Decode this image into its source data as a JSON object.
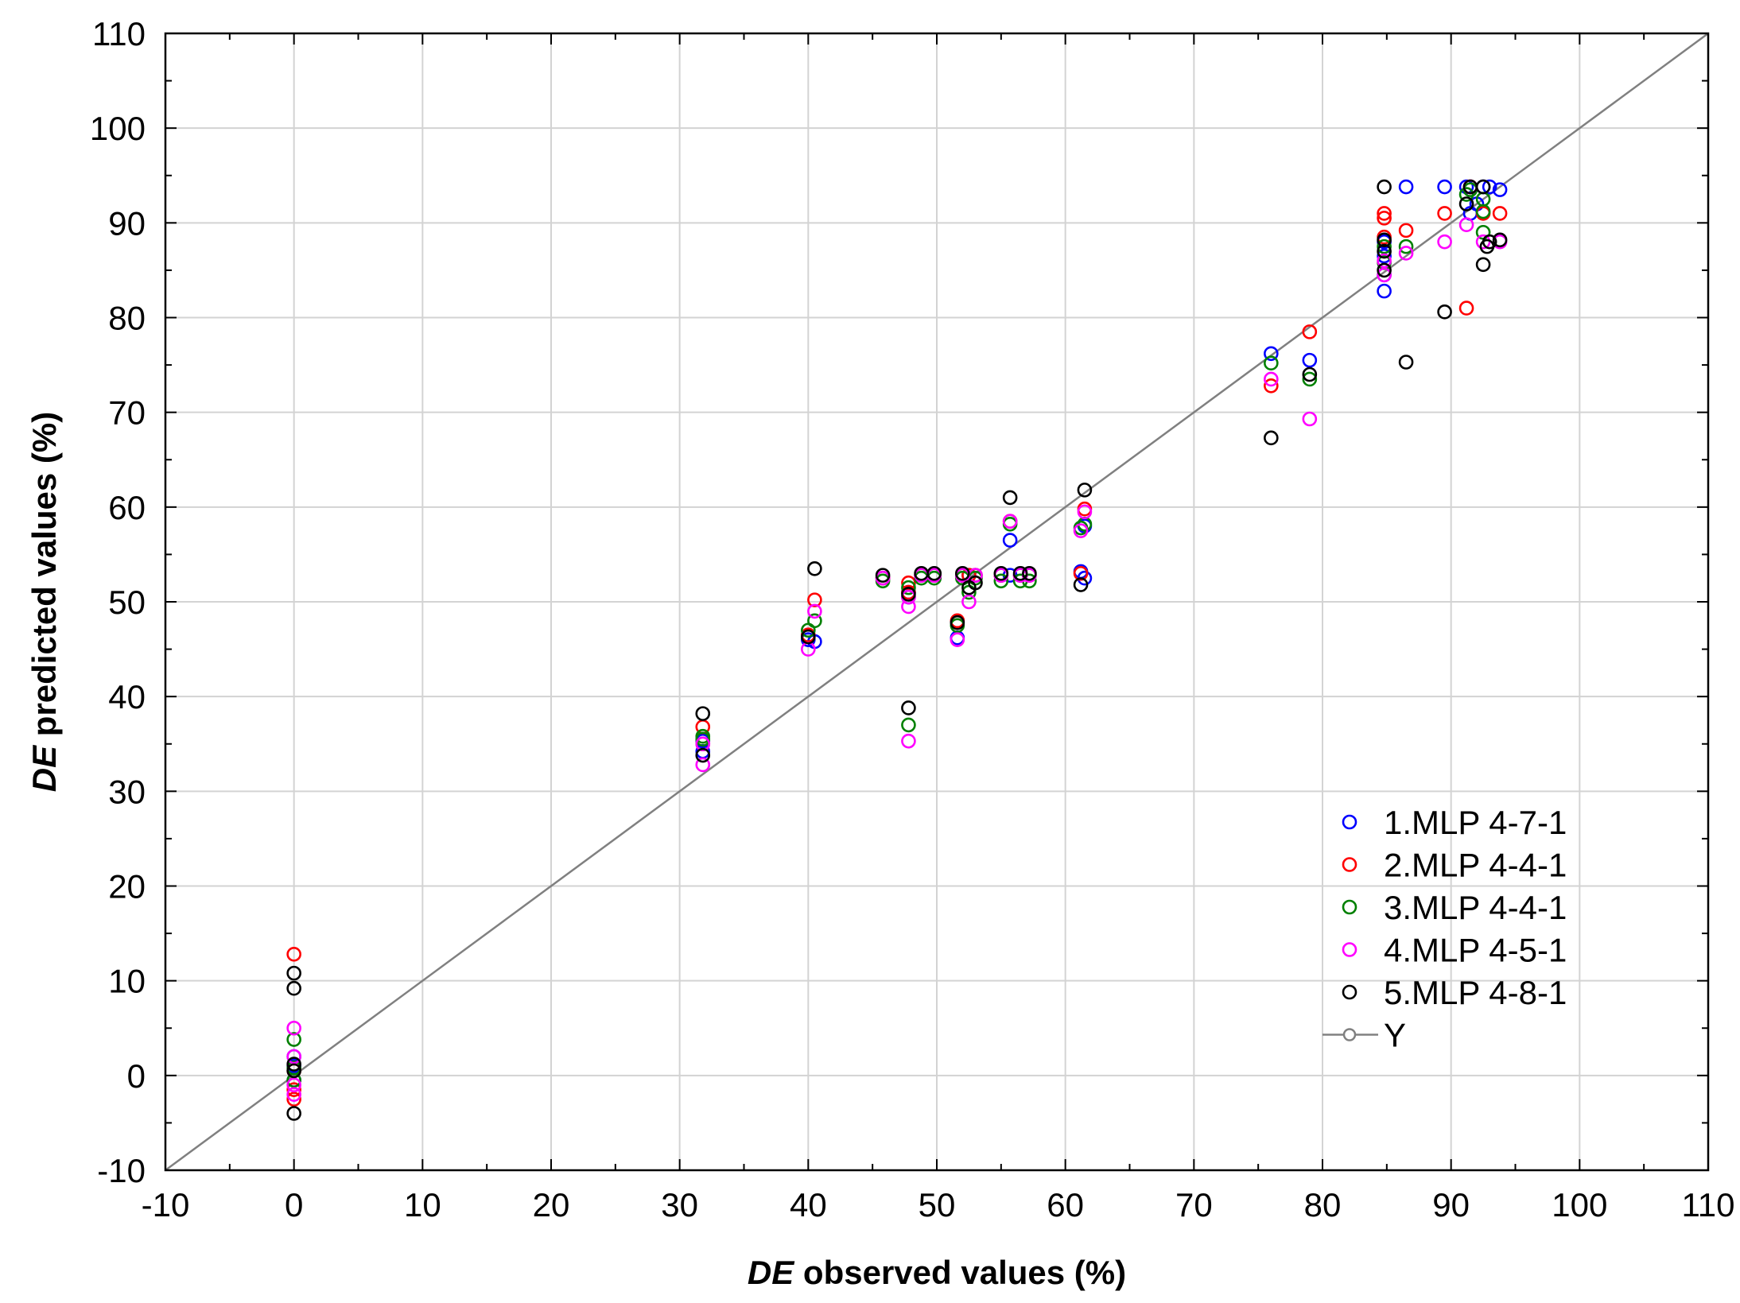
{
  "chart_data": {
    "type": "scatter",
    "xlabel_prefix": "DE",
    "xlabel_rest": " observed values (%)",
    "ylabel_prefix": "DE",
    "ylabel_rest": " predicted values (%)",
    "xlim": [
      -10,
      110
    ],
    "ylim": [
      -10,
      110
    ],
    "xticks": [
      -10,
      0,
      10,
      20,
      30,
      40,
      50,
      60,
      70,
      80,
      90,
      100,
      110
    ],
    "yticks": [
      -10,
      0,
      10,
      20,
      30,
      40,
      50,
      60,
      70,
      80,
      90,
      100,
      110
    ],
    "grid": true,
    "legend_position": "bottom-right",
    "series": [
      {
        "name": "1.MLP 4-7-1",
        "color": "#0000ff",
        "points": [
          [
            0,
            1
          ],
          [
            0,
            -0.5
          ],
          [
            0,
            2
          ],
          [
            31.8,
            35.3
          ],
          [
            31.8,
            34.2
          ],
          [
            40,
            46
          ],
          [
            40.5,
            45.8
          ],
          [
            45.8,
            52.5
          ],
          [
            47.8,
            51
          ],
          [
            47.8,
            50.5
          ],
          [
            48.8,
            52.8
          ],
          [
            49.8,
            52.8
          ],
          [
            51.6,
            46.2
          ],
          [
            52,
            52.8
          ],
          [
            52.5,
            52.8
          ],
          [
            53,
            52.8
          ],
          [
            55,
            52.8
          ],
          [
            55.7,
            56.5
          ],
          [
            55.7,
            52.8
          ],
          [
            56.5,
            52.8
          ],
          [
            57.2,
            52.8
          ],
          [
            61.2,
            53.2
          ],
          [
            61.5,
            52.5
          ],
          [
            61.5,
            58
          ],
          [
            76,
            76.2
          ],
          [
            79,
            75.5
          ],
          [
            84.8,
            82.8
          ],
          [
            84.8,
            84.5
          ],
          [
            84.8,
            86.5
          ],
          [
            84.8,
            88
          ],
          [
            86.5,
            93.8
          ],
          [
            89.5,
            93.8
          ],
          [
            91.2,
            93.8
          ],
          [
            91.5,
            91
          ],
          [
            92,
            92
          ],
          [
            92.5,
            93.8
          ],
          [
            93,
            93.8
          ],
          [
            93.8,
            93.5
          ]
        ]
      },
      {
        "name": "2.MLP 4-4-1",
        "color": "#ff0000",
        "points": [
          [
            0,
            12.8
          ],
          [
            0,
            -2.5
          ],
          [
            0,
            -1.5
          ],
          [
            0,
            0.5
          ],
          [
            31.8,
            36.8
          ],
          [
            31.8,
            35
          ],
          [
            40,
            46.5
          ],
          [
            40.5,
            50.2
          ],
          [
            45.8,
            52.5
          ],
          [
            47.8,
            52
          ],
          [
            47.8,
            51
          ],
          [
            48.8,
            52.8
          ],
          [
            49.8,
            52.8
          ],
          [
            51.6,
            48
          ],
          [
            52,
            52.8
          ],
          [
            52.5,
            52.8
          ],
          [
            53,
            52.8
          ],
          [
            55,
            52.8
          ],
          [
            55.7,
            58.5
          ],
          [
            56.5,
            52.8
          ],
          [
            57.2,
            52.8
          ],
          [
            61.2,
            53
          ],
          [
            61.5,
            59.8
          ],
          [
            76,
            72.8
          ],
          [
            79,
            78.5
          ],
          [
            84.8,
            91
          ],
          [
            84.8,
            90.5
          ],
          [
            84.8,
            88.5
          ],
          [
            86.5,
            89.2
          ],
          [
            89.5,
            91
          ],
          [
            91.2,
            81
          ],
          [
            91.5,
            93.8
          ],
          [
            92.5,
            91
          ],
          [
            93.8,
            91
          ]
        ]
      },
      {
        "name": "3.MLP 4-4-1",
        "color": "#008000",
        "points": [
          [
            0,
            3.8
          ],
          [
            0,
            -0.5
          ],
          [
            0,
            0.8
          ],
          [
            31.8,
            35.8
          ],
          [
            31.8,
            35.5
          ],
          [
            40,
            47
          ],
          [
            40.5,
            48
          ],
          [
            45.8,
            52.2
          ],
          [
            47.8,
            37
          ],
          [
            47.8,
            51.5
          ],
          [
            48.8,
            52.5
          ],
          [
            49.8,
            52.5
          ],
          [
            51.6,
            47.5
          ],
          [
            52,
            52.5
          ],
          [
            52.5,
            51
          ],
          [
            53,
            52.5
          ],
          [
            55,
            52.2
          ],
          [
            55.7,
            58.2
          ],
          [
            56.5,
            52.2
          ],
          [
            57.2,
            52.2
          ],
          [
            61.2,
            57.8
          ],
          [
            61.5,
            58.2
          ],
          [
            76,
            75.2
          ],
          [
            79,
            73.5
          ],
          [
            84.8,
            85.8
          ],
          [
            84.8,
            87.5
          ],
          [
            86.5,
            87.5
          ],
          [
            91.2,
            93
          ],
          [
            91.5,
            93.5
          ],
          [
            92.5,
            92.5
          ],
          [
            92.5,
            91.2
          ],
          [
            92.5,
            89
          ]
        ]
      },
      {
        "name": "4.MLP 4-5-1",
        "color": "#ff00ff",
        "points": [
          [
            0,
            5
          ],
          [
            0,
            -2
          ],
          [
            0,
            2
          ],
          [
            0,
            -1
          ],
          [
            31.8,
            32.8
          ],
          [
            31.8,
            35
          ],
          [
            40,
            45
          ],
          [
            40.5,
            49
          ],
          [
            45.8,
            52.5
          ],
          [
            47.8,
            35.3
          ],
          [
            47.8,
            50.5
          ],
          [
            47.8,
            49.5
          ],
          [
            48.8,
            52.8
          ],
          [
            49.8,
            52.8
          ],
          [
            51.6,
            46
          ],
          [
            52,
            52.8
          ],
          [
            52.5,
            50
          ],
          [
            53,
            52.8
          ],
          [
            55,
            52.8
          ],
          [
            55.7,
            58.5
          ],
          [
            56.5,
            52.8
          ],
          [
            57.2,
            52.8
          ],
          [
            61.2,
            57.5
          ],
          [
            61.5,
            59.5
          ],
          [
            76,
            73.5
          ],
          [
            79,
            69.3
          ],
          [
            84.8,
            84.5
          ],
          [
            84.8,
            86
          ],
          [
            86.5,
            86.8
          ],
          [
            89.5,
            88
          ],
          [
            91.2,
            89.8
          ],
          [
            91.5,
            93.8
          ],
          [
            92.5,
            88
          ],
          [
            93.8,
            88
          ]
        ]
      },
      {
        "name": "5.MLP 4-8-1",
        "color": "#000000",
        "points": [
          [
            0,
            10.8
          ],
          [
            0,
            9.2
          ],
          [
            0,
            1.2
          ],
          [
            0,
            0.5
          ],
          [
            0,
            -4
          ],
          [
            31.8,
            38.2
          ],
          [
            31.8,
            33.8
          ],
          [
            40,
            46.3
          ],
          [
            40.5,
            53.5
          ],
          [
            45.8,
            52.8
          ],
          [
            47.8,
            38.8
          ],
          [
            47.8,
            50.8
          ],
          [
            48.8,
            53
          ],
          [
            49.8,
            53
          ],
          [
            51.6,
            47.8
          ],
          [
            52,
            53
          ],
          [
            52.5,
            51.5
          ],
          [
            53,
            52
          ],
          [
            55,
            53
          ],
          [
            55.7,
            61
          ],
          [
            56.5,
            53
          ],
          [
            57.2,
            53
          ],
          [
            61.2,
            51.8
          ],
          [
            61.5,
            61.8
          ],
          [
            76,
            67.3
          ],
          [
            79,
            74
          ],
          [
            84.8,
            93.8
          ],
          [
            84.8,
            88.2
          ],
          [
            84.8,
            87
          ],
          [
            84.8,
            85
          ],
          [
            86.5,
            75.3
          ],
          [
            89.5,
            80.6
          ],
          [
            91.2,
            92
          ],
          [
            91.5,
            93.8
          ],
          [
            92.5,
            85.6
          ],
          [
            92.5,
            93.8
          ],
          [
            92.8,
            87.5
          ],
          [
            93,
            88
          ],
          [
            93.8,
            88.2
          ]
        ]
      }
    ],
    "reference_line": {
      "name": "Y",
      "color": "#808080",
      "from": [
        -10,
        -10
      ],
      "to": [
        110,
        110
      ]
    }
  }
}
